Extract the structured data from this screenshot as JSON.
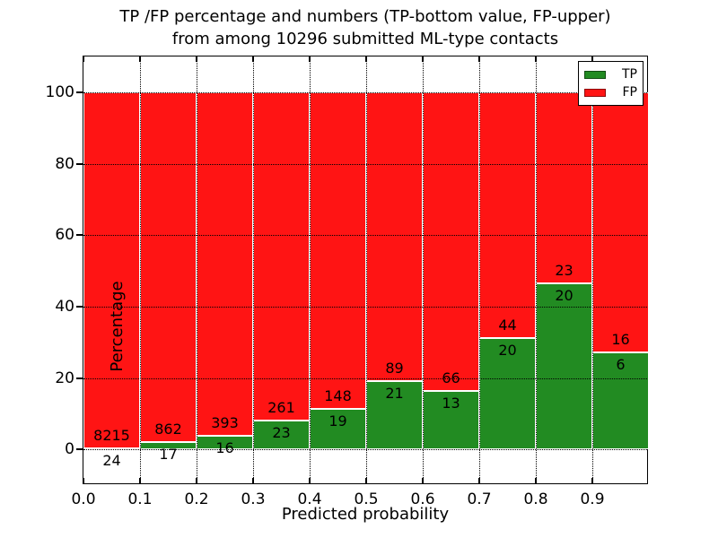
{
  "chart_data": {
    "type": "bar",
    "stacked": true,
    "normalized_to_percent": true,
    "title_line1": "TP /FP percentage and numbers (TP-bottom value, FP-upper)",
    "title_line2": "from among 10296 submitted ML-type contacts",
    "xlabel": "Predicted probability",
    "ylabel": "Percentage",
    "total_contacts": 10296,
    "bin_width": 0.1,
    "x_tick_labels": [
      "0.0",
      "0.1",
      "0.2",
      "0.3",
      "0.4",
      "0.5",
      "0.6",
      "0.7",
      "0.8",
      "0.9"
    ],
    "y_tick_labels": [
      "0",
      "20",
      "40",
      "60",
      "80",
      "100"
    ],
    "y_tick_values": [
      0,
      20,
      40,
      60,
      80,
      100
    ],
    "xlim": [
      0.0,
      1.0
    ],
    "ylim": [
      -10,
      110
    ],
    "grid": {
      "on": true,
      "style": "dotted",
      "color": "#000000"
    },
    "bar_edge_color": "#ffffff",
    "legend": {
      "position": "upper right",
      "items": [
        {
          "label": "TP",
          "color": "#228b22"
        },
        {
          "label": "FP",
          "color": "#ff1414"
        }
      ]
    },
    "series": [
      {
        "name": "TP",
        "color": "#228b22",
        "counts": [
          24,
          17,
          16,
          23,
          19,
          21,
          13,
          20,
          20,
          6
        ]
      },
      {
        "name": "FP",
        "color": "#ff1414",
        "counts": [
          8215,
          862,
          393,
          261,
          148,
          89,
          66,
          44,
          23,
          16
        ]
      }
    ],
    "tp_percent_of_bin": [
      0.29,
      1.93,
      3.91,
      8.1,
      11.38,
      19.09,
      16.46,
      31.25,
      46.51,
      27.27
    ]
  }
}
